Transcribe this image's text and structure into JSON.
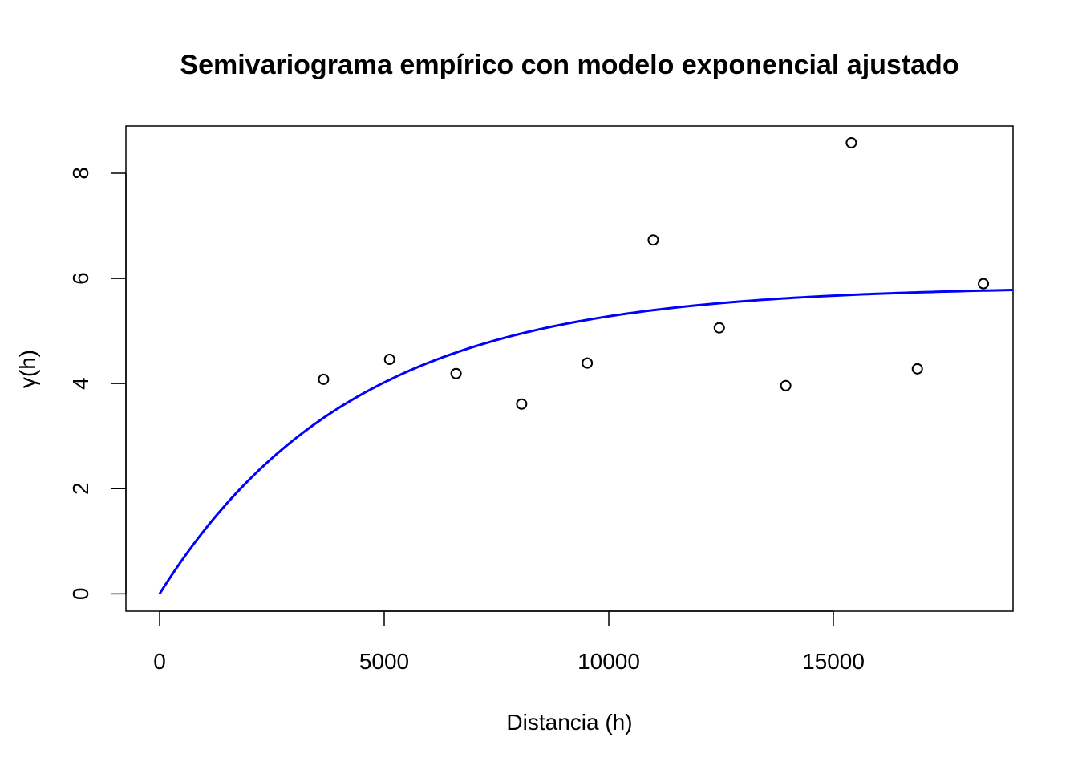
{
  "chart_data": {
    "type": "scatter",
    "title": "Semivariograma empírico con modelo exponencial ajustado",
    "xlabel": "Distancia (h)",
    "ylabel": "γ(h)",
    "xlim": [
      -750,
      19000
    ],
    "ylim": [
      -0.33,
      8.9
    ],
    "xticks": [
      0,
      5000,
      10000,
      15000
    ],
    "yticks": [
      0,
      2,
      4,
      6,
      8
    ],
    "grid": false,
    "legend": "none",
    "points": {
      "x": [
        3650,
        5120,
        6600,
        8060,
        9520,
        10990,
        12460,
        13940,
        15400,
        16870,
        18340
      ],
      "y": [
        4.08,
        4.46,
        4.19,
        3.61,
        4.39,
        6.73,
        5.06,
        3.96,
        8.58,
        4.28,
        5.9
      ],
      "color": "#000000"
    },
    "model": {
      "type": "exponential",
      "sill": 5.85,
      "range": 4300,
      "nugget": 0,
      "color": "#0000ff"
    }
  }
}
